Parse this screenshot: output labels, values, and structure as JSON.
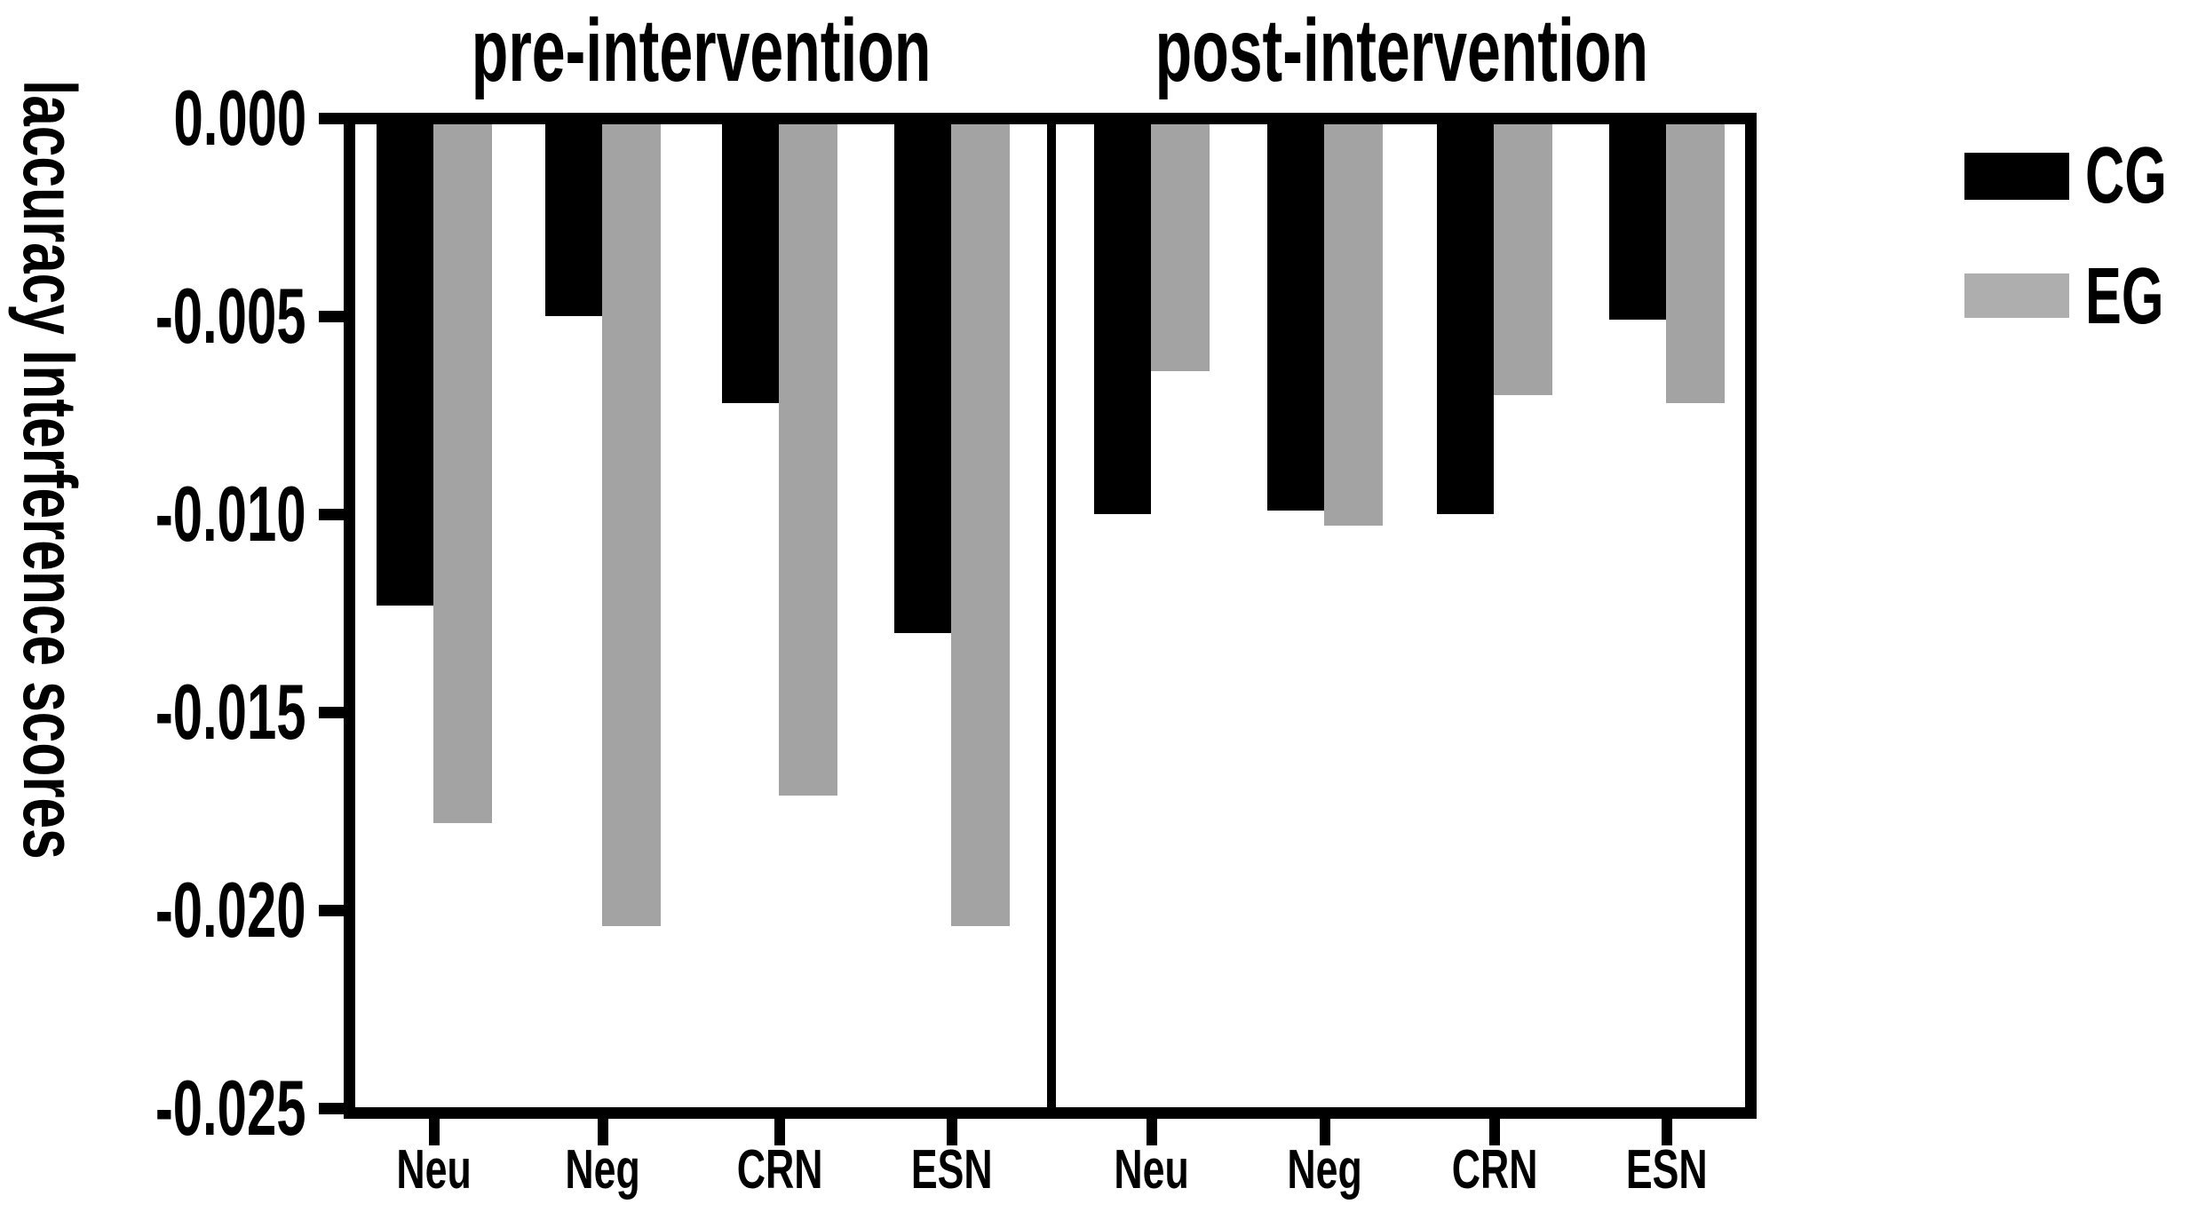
{
  "chart_data": {
    "type": "bar",
    "title": "",
    "ylabel": "laccuracy Interference scores",
    "ylim": [
      -0.025,
      0
    ],
    "grid": false,
    "legend_position": "upper right",
    "yticks": [
      {
        "label": "0.000",
        "value": 0
      },
      {
        "label": "-0.005",
        "value": -0.005
      },
      {
        "label": "-0.010",
        "value": -0.01
      },
      {
        "label": "-0.015",
        "value": -0.015
      },
      {
        "label": "-0.020",
        "value": -0.02
      },
      {
        "label": "-0.025",
        "value": -0.025
      }
    ],
    "series_colors": {
      "CG": "#000000",
      "EG": "#a3a3a3"
    },
    "panels": [
      {
        "title": "pre-intervention",
        "categories": [
          "Neu",
          "Neg",
          "CRN",
          "ESN"
        ],
        "series": [
          {
            "name": "CG",
            "color": "#000000",
            "values": [
              -0.0123,
              -0.005,
              -0.0072,
              -0.013
            ]
          },
          {
            "name": "EG",
            "color": "#a3a3a3",
            "values": [
              -0.0178,
              -0.0204,
              -0.0171,
              -0.0204
            ]
          }
        ]
      },
      {
        "title": "post-intervention",
        "categories": [
          "Neu",
          "Neg",
          "CRN",
          "ESN"
        ],
        "series": [
          {
            "name": "CG",
            "color": "#000000",
            "values": [
              -0.01,
              -0.0099,
              -0.01,
              -0.0051
            ]
          },
          {
            "name": "EG",
            "color": "#a3a3a3",
            "values": [
              -0.0064,
              -0.0103,
              -0.007,
              -0.0072
            ]
          }
        ]
      }
    ],
    "legend": [
      {
        "label": "CG",
        "color": "#000000"
      },
      {
        "label": "EG",
        "color": "#a3a3a3"
      }
    ]
  }
}
